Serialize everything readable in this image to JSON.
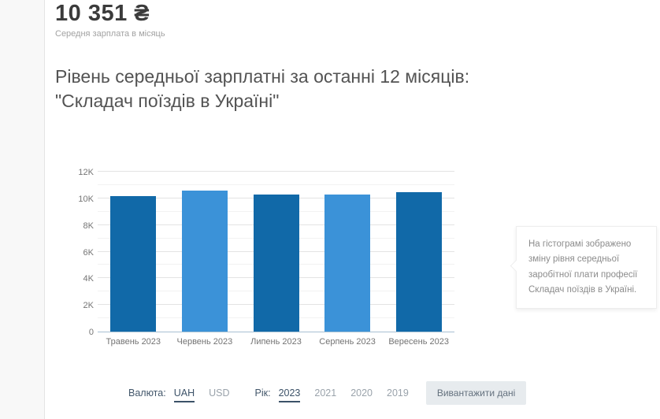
{
  "header": {
    "salary_value": "10 351 ₴",
    "salary_caption": "Середня зарплата в місяць"
  },
  "title": {
    "line1": "Рівень середньої зарплатні за останні 12 місяців:",
    "line2": "\"Складач поїздів в Україні\""
  },
  "chart_data": {
    "type": "bar",
    "title": "Рівень середньої зарплатні за останні 12 місяців: \"Складач поїздів в Україні\"",
    "categories": [
      "Травень 2023",
      "Червень 2023",
      "Липень 2023",
      "Серпень 2023",
      "Вересень 2023"
    ],
    "values": [
      10160,
      10560,
      10300,
      10310,
      10440
    ],
    "ylim": [
      0,
      12000
    ],
    "ytick_step": 2000,
    "ytick_labels": [
      "0",
      "2K",
      "4K",
      "6K",
      "8K",
      "10K",
      "12K"
    ],
    "grid": true,
    "legend": "none",
    "bar_colors_alternating": [
      "#1169a8",
      "#3b92d8"
    ],
    "axis_line_color": "#a7c0d3",
    "xlabel": "",
    "ylabel": ""
  },
  "tooltip": {
    "text": "На гістограмі зображено зміну рівня середньої заробітної плати професії Складач поїздів в Україні."
  },
  "controls": {
    "currency_label": "Валюта:",
    "currency_options": [
      {
        "label": "UAH",
        "active": true
      },
      {
        "label": "USD",
        "active": false
      }
    ],
    "year_label": "Рік:",
    "year_options": [
      {
        "label": "2023",
        "active": true
      },
      {
        "label": "2021",
        "active": false
      },
      {
        "label": "2020",
        "active": false
      },
      {
        "label": "2019",
        "active": false
      }
    ],
    "download_button": "Вивантажити дані"
  }
}
